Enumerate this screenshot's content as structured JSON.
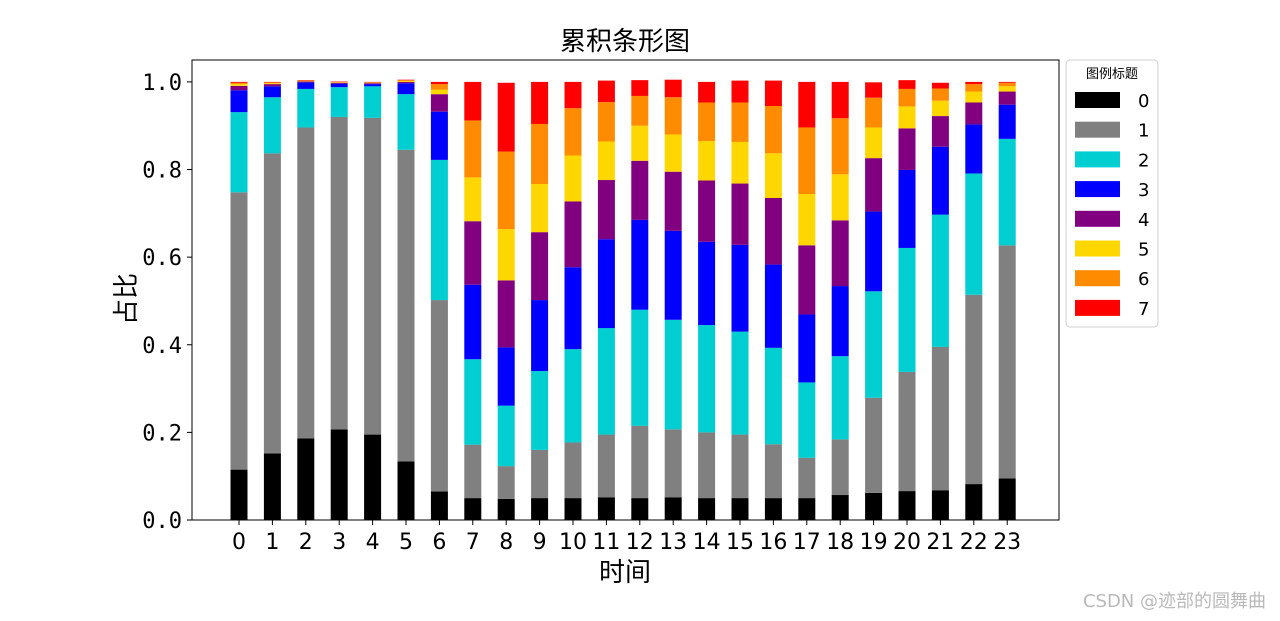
{
  "chart_data": {
    "type": "bar",
    "stacked": true,
    "title": "累积条形图",
    "xlabel": "时间",
    "ylabel": "占比",
    "ylim": [
      0,
      1.05
    ],
    "yticks": [
      "0.0",
      "0.2",
      "0.4",
      "0.6",
      "0.8",
      "1.0"
    ],
    "categories": [
      "0",
      "1",
      "2",
      "3",
      "4",
      "5",
      "6",
      "7",
      "8",
      "9",
      "10",
      "11",
      "12",
      "13",
      "14",
      "15",
      "16",
      "17",
      "18",
      "19",
      "20",
      "21",
      "22",
      "23"
    ],
    "legend": {
      "title": "图例标题",
      "position": "outside-upper-right"
    },
    "series": [
      {
        "name": "0",
        "color": "#000000",
        "values": [
          0.115,
          0.152,
          0.186,
          0.207,
          0.195,
          0.134,
          0.065,
          0.05,
          0.048,
          0.05,
          0.05,
          0.052,
          0.05,
          0.052,
          0.05,
          0.05,
          0.05,
          0.05,
          0.057,
          0.062,
          0.066,
          0.068,
          0.082,
          0.095
        ]
      },
      {
        "name": "1",
        "color": "#808080",
        "values": [
          0.633,
          0.685,
          0.71,
          0.713,
          0.723,
          0.711,
          0.437,
          0.122,
          0.075,
          0.11,
          0.127,
          0.143,
          0.165,
          0.155,
          0.15,
          0.145,
          0.123,
          0.092,
          0.127,
          0.217,
          0.272,
          0.327,
          0.432,
          0.532
        ]
      },
      {
        "name": "2",
        "color": "#00CED1",
        "values": [
          0.183,
          0.128,
          0.088,
          0.068,
          0.072,
          0.127,
          0.32,
          0.195,
          0.138,
          0.18,
          0.213,
          0.243,
          0.265,
          0.25,
          0.245,
          0.235,
          0.22,
          0.172,
          0.19,
          0.243,
          0.283,
          0.302,
          0.277,
          0.243
        ]
      },
      {
        "name": "3",
        "color": "#0000FF",
        "values": [
          0.05,
          0.025,
          0.015,
          0.008,
          0.005,
          0.025,
          0.11,
          0.17,
          0.133,
          0.162,
          0.187,
          0.203,
          0.205,
          0.203,
          0.19,
          0.198,
          0.19,
          0.155,
          0.16,
          0.182,
          0.178,
          0.155,
          0.112,
          0.078
        ]
      },
      {
        "name": "4",
        "color": "#800080",
        "values": [
          0.01,
          0.005,
          0.002,
          0.002,
          0.002,
          0.003,
          0.04,
          0.145,
          0.153,
          0.155,
          0.15,
          0.135,
          0.135,
          0.135,
          0.14,
          0.14,
          0.152,
          0.158,
          0.15,
          0.122,
          0.095,
          0.07,
          0.05,
          0.03
        ]
      },
      {
        "name": "5",
        "color": "#FFD700",
        "values": [
          0.004,
          0.002,
          0.001,
          0.001,
          0.001,
          0.002,
          0.01,
          0.1,
          0.117,
          0.11,
          0.105,
          0.088,
          0.08,
          0.085,
          0.09,
          0.095,
          0.102,
          0.117,
          0.105,
          0.07,
          0.05,
          0.035,
          0.025,
          0.012
        ]
      },
      {
        "name": "6",
        "color": "#FF8C00",
        "values": [
          0.003,
          0.002,
          0.001,
          0.001,
          0.001,
          0.002,
          0.013,
          0.13,
          0.177,
          0.137,
          0.108,
          0.09,
          0.068,
          0.085,
          0.088,
          0.09,
          0.108,
          0.152,
          0.128,
          0.068,
          0.04,
          0.028,
          0.017,
          0.008
        ]
      },
      {
        "name": "7",
        "color": "#FF0000",
        "values": [
          0.002,
          0.001,
          0.001,
          0.001,
          0.001,
          0.001,
          0.005,
          0.088,
          0.157,
          0.096,
          0.06,
          0.049,
          0.036,
          0.04,
          0.047,
          0.05,
          0.058,
          0.104,
          0.083,
          0.035,
          0.02,
          0.013,
          0.005,
          0.002
        ]
      }
    ]
  },
  "watermark": "CSDN @迹部的圆舞曲"
}
